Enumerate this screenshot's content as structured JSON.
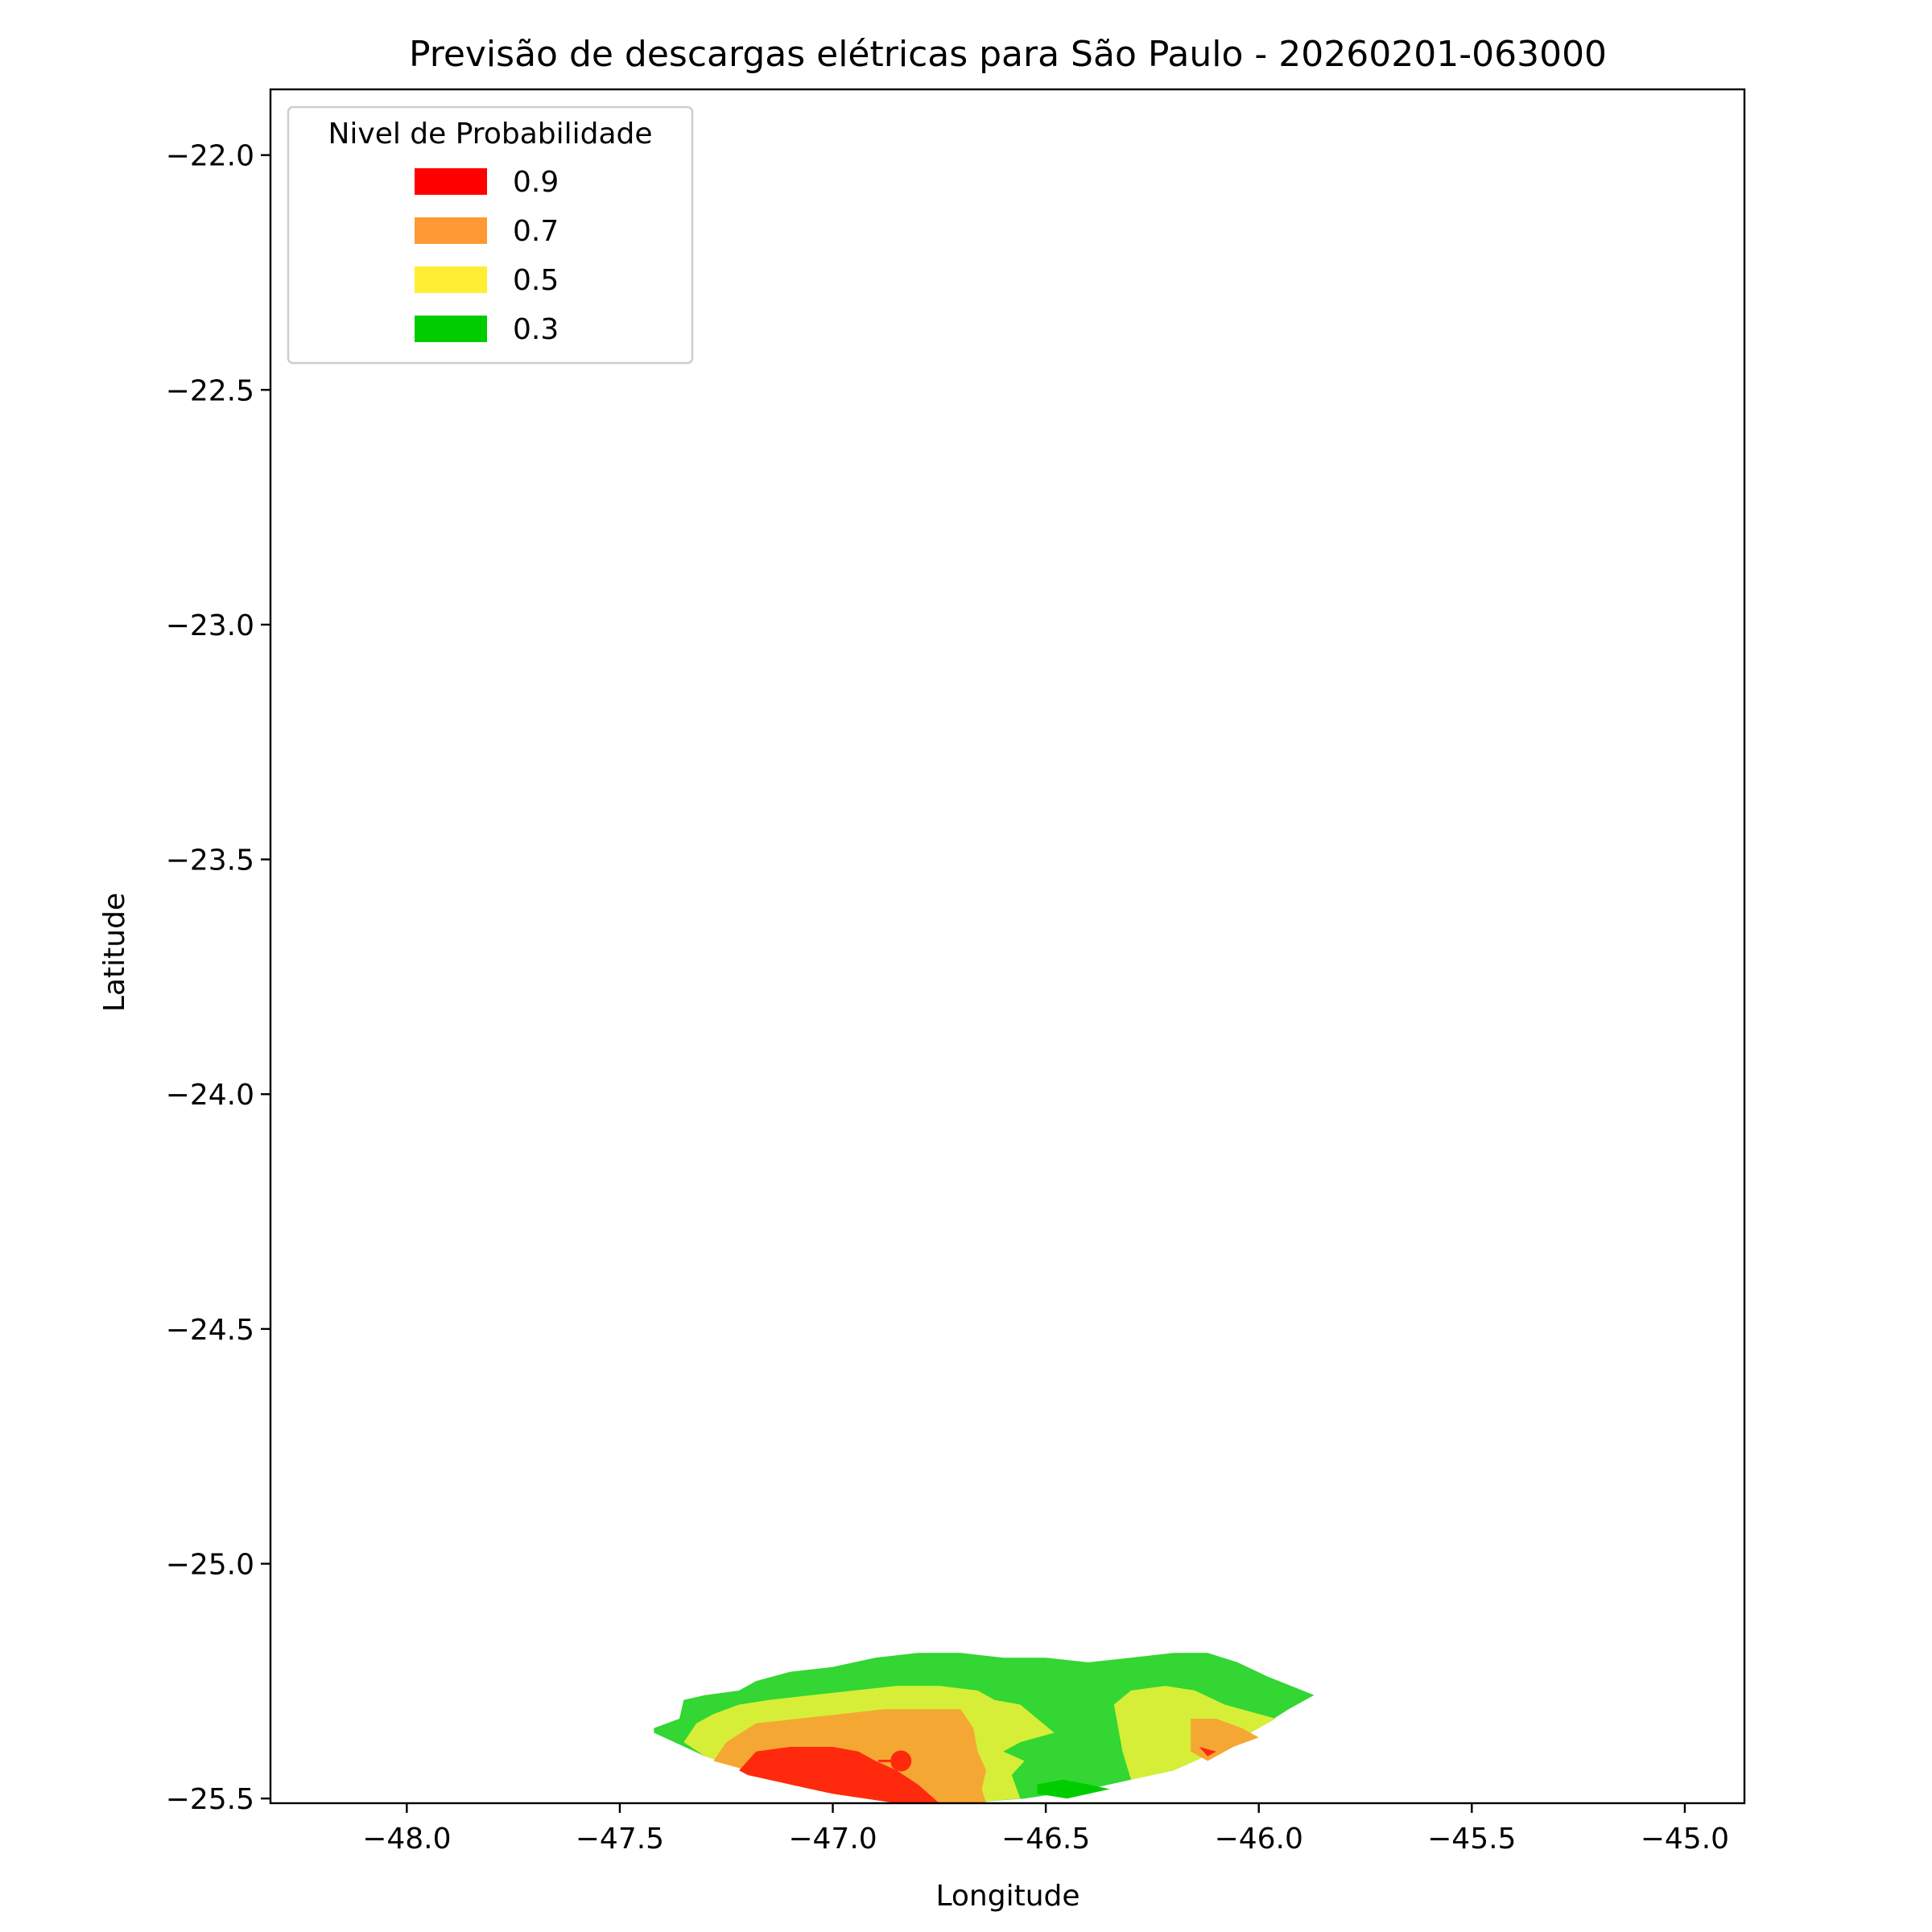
{
  "chart_data": {
    "type": "contour",
    "title": "Previsão de descargas elétricas para São Paulo - 20260201-063000",
    "xlabel": "Longitude",
    "ylabel": "Latitude",
    "xlim": [
      -48.32,
      -44.86
    ],
    "ylim": [
      -25.51,
      -21.86
    ],
    "xticks": [
      -48.0,
      -47.5,
      -47.0,
      -46.5,
      -46.0,
      -45.5,
      -45.0
    ],
    "yticks": [
      -22.0,
      -22.5,
      -23.0,
      -23.5,
      -24.0,
      -24.5,
      -25.0,
      -25.5
    ],
    "xtick_labels": [
      "−48.0",
      "−47.5",
      "−47.0",
      "−46.5",
      "−46.0",
      "−45.5",
      "−45.0"
    ],
    "ytick_labels": [
      "−22.0",
      "−22.5",
      "−23.0",
      "−23.5",
      "−24.0",
      "−24.5",
      "−25.0",
      "−25.5"
    ],
    "grid": false,
    "legend": {
      "title": "Nivel de Probabilidade",
      "placement": "top-left",
      "entries": [
        {
          "label": "0.9",
          "color": "#ff0000"
        },
        {
          "label": "0.7",
          "color": "#ff9933"
        },
        {
          "label": "0.5",
          "color": "#ffee33"
        },
        {
          "label": "0.3",
          "color": "#00cc00"
        }
      ]
    },
    "regions": [
      {
        "level": 0.3,
        "color": "#33d633",
        "lonlat": [
          [
            -47.42,
            -25.35
          ],
          [
            -47.36,
            -25.33
          ],
          [
            -47.35,
            -25.29
          ],
          [
            -47.3,
            -25.28
          ],
          [
            -47.22,
            -25.27
          ],
          [
            -47.18,
            -25.25
          ],
          [
            -47.1,
            -25.23
          ],
          [
            -47.0,
            -25.22
          ],
          [
            -46.9,
            -25.2
          ],
          [
            -46.8,
            -25.19
          ],
          [
            -46.7,
            -25.19
          ],
          [
            -46.6,
            -25.2
          ],
          [
            -46.5,
            -25.2
          ],
          [
            -46.4,
            -25.21
          ],
          [
            -46.3,
            -25.2
          ],
          [
            -46.2,
            -25.19
          ],
          [
            -46.12,
            -25.19
          ],
          [
            -46.05,
            -25.21
          ],
          [
            -45.98,
            -25.24
          ],
          [
            -45.87,
            -25.28
          ],
          [
            -45.93,
            -25.31
          ],
          [
            -46.0,
            -25.35
          ],
          [
            -46.1,
            -25.4
          ],
          [
            -46.2,
            -25.44
          ],
          [
            -46.3,
            -25.46
          ],
          [
            -46.4,
            -25.48
          ],
          [
            -46.55,
            -25.5
          ],
          [
            -46.7,
            -25.51
          ],
          [
            -46.85,
            -25.51
          ],
          [
            -47.0,
            -25.49
          ],
          [
            -47.1,
            -25.47
          ],
          [
            -47.2,
            -25.44
          ],
          [
            -47.3,
            -25.41
          ],
          [
            -47.42,
            -25.36
          ]
        ]
      },
      {
        "level": 0.3,
        "color": "#00cc00",
        "lonlat": [
          [
            -46.52,
            -25.47
          ],
          [
            -46.46,
            -25.46
          ],
          [
            -46.4,
            -25.47
          ],
          [
            -46.35,
            -25.48
          ],
          [
            -46.45,
            -25.5
          ],
          [
            -46.52,
            -25.49
          ]
        ]
      },
      {
        "level": 0.5,
        "color": "#d6ee38",
        "lonlat": [
          [
            -47.35,
            -25.38
          ],
          [
            -47.32,
            -25.34
          ],
          [
            -47.28,
            -25.32
          ],
          [
            -47.22,
            -25.3
          ],
          [
            -47.15,
            -25.29
          ],
          [
            -47.05,
            -25.28
          ],
          [
            -46.95,
            -25.27
          ],
          [
            -46.85,
            -25.26
          ],
          [
            -46.75,
            -25.26
          ],
          [
            -46.66,
            -25.27
          ],
          [
            -46.62,
            -25.29
          ],
          [
            -46.56,
            -25.3
          ],
          [
            -46.52,
            -25.33
          ],
          [
            -46.48,
            -25.36
          ],
          [
            -46.56,
            -25.38
          ],
          [
            -46.6,
            -25.4
          ],
          [
            -46.55,
            -25.42
          ],
          [
            -46.58,
            -25.45
          ],
          [
            -46.56,
            -25.5
          ],
          [
            -46.7,
            -25.51
          ],
          [
            -46.85,
            -25.51
          ],
          [
            -47.0,
            -25.49
          ],
          [
            -47.1,
            -25.47
          ],
          [
            -47.2,
            -25.44
          ],
          [
            -47.3,
            -25.41
          ]
        ]
      },
      {
        "level": 0.5,
        "color": "#d6ee38",
        "lonlat": [
          [
            -46.34,
            -25.3
          ],
          [
            -46.3,
            -25.27
          ],
          [
            -46.22,
            -25.26
          ],
          [
            -46.15,
            -25.27
          ],
          [
            -46.08,
            -25.3
          ],
          [
            -45.96,
            -25.33
          ],
          [
            -46.0,
            -25.35
          ],
          [
            -46.1,
            -25.4
          ],
          [
            -46.2,
            -25.44
          ],
          [
            -46.3,
            -25.46
          ],
          [
            -46.32,
            -25.4
          ]
        ]
      },
      {
        "level": 0.7,
        "color": "#f5a733",
        "lonlat": [
          [
            -47.28,
            -25.42
          ],
          [
            -47.25,
            -25.38
          ],
          [
            -47.18,
            -25.34
          ],
          [
            -47.08,
            -25.33
          ],
          [
            -46.98,
            -25.32
          ],
          [
            -46.88,
            -25.31
          ],
          [
            -46.78,
            -25.31
          ],
          [
            -46.7,
            -25.31
          ],
          [
            -46.67,
            -25.35
          ],
          [
            -46.66,
            -25.4
          ],
          [
            -46.64,
            -25.44
          ],
          [
            -46.65,
            -25.48
          ],
          [
            -46.64,
            -25.51
          ],
          [
            -46.7,
            -25.51
          ],
          [
            -46.85,
            -25.51
          ],
          [
            -47.0,
            -25.49
          ],
          [
            -47.1,
            -25.47
          ],
          [
            -47.2,
            -25.44
          ]
        ]
      },
      {
        "level": 0.7,
        "color": "#f5a733",
        "lonlat": [
          [
            -46.16,
            -25.33
          ],
          [
            -46.1,
            -25.33
          ],
          [
            -46.04,
            -25.35
          ],
          [
            -46.0,
            -25.37
          ],
          [
            -46.06,
            -25.39
          ],
          [
            -46.12,
            -25.42
          ],
          [
            -46.16,
            -25.4
          ]
        ]
      },
      {
        "level": 0.9,
        "color": "#ff2a0e",
        "lonlat": [
          [
            -47.22,
            -25.44
          ],
          [
            -47.18,
            -25.4
          ],
          [
            -47.1,
            -25.39
          ],
          [
            -47.0,
            -25.39
          ],
          [
            -46.94,
            -25.4
          ],
          [
            -46.9,
            -25.42
          ],
          [
            -46.85,
            -25.44
          ],
          [
            -46.8,
            -25.47
          ],
          [
            -46.75,
            -25.51
          ],
          [
            -46.85,
            -25.51
          ],
          [
            -47.0,
            -25.49
          ],
          [
            -47.1,
            -25.47
          ],
          [
            -47.2,
            -25.45
          ]
        ]
      },
      {
        "level": 0.9,
        "color": "#ff2a0e",
        "lonlat": [
          [
            -46.14,
            -25.39
          ],
          [
            -46.12,
            -25.41
          ],
          [
            -46.1,
            -25.4
          ]
        ]
      }
    ],
    "markers": [
      {
        "lon": -46.84,
        "lat": -25.42,
        "color": "#ff2a0e"
      }
    ]
  }
}
